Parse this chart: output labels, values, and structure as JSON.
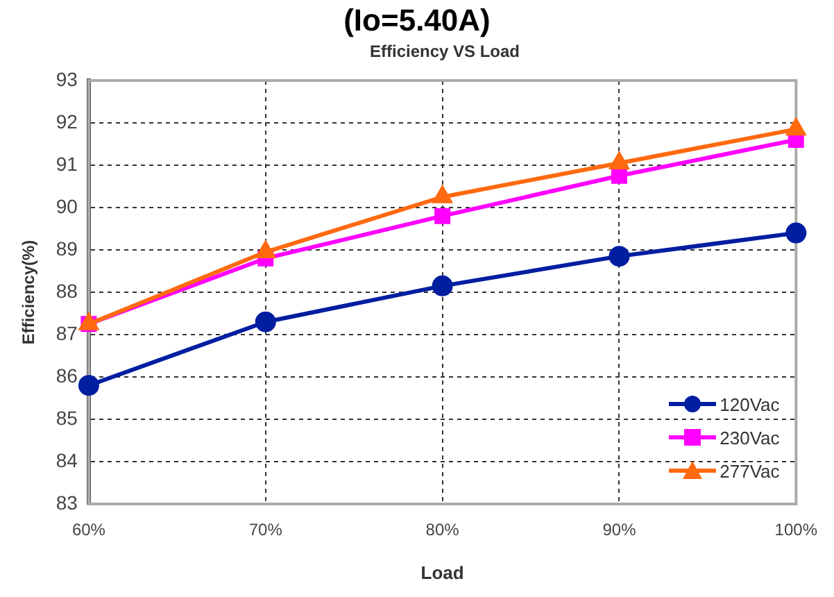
{
  "chart_data": {
    "type": "line",
    "title": "(Io=5.40A)",
    "subtitle": "Efficiency VS  Load",
    "xlabel": "Load",
    "ylabel": "Efficiency(%)",
    "categories": [
      "60%",
      "70%",
      "80%",
      "90%",
      "100%"
    ],
    "series": [
      {
        "name": "120Vac",
        "color": "#001ea0",
        "marker": "circle",
        "values": [
          85.8,
          87.3,
          88.15,
          88.85,
          89.4
        ]
      },
      {
        "name": "230Vac",
        "color": "#ff00ff",
        "marker": "square",
        "values": [
          87.25,
          88.8,
          89.8,
          90.75,
          91.6
        ]
      },
      {
        "name": "277Vac",
        "color": "#ff6a10",
        "marker": "triangle",
        "values": [
          87.25,
          88.95,
          90.25,
          91.05,
          91.85
        ]
      }
    ],
    "ylim": [
      83,
      93
    ],
    "yticks": [
      83,
      84,
      85,
      86,
      87,
      88,
      89,
      90,
      91,
      92,
      93
    ],
    "grid": true,
    "legend": "bottom right",
    "line_style": "solid"
  }
}
